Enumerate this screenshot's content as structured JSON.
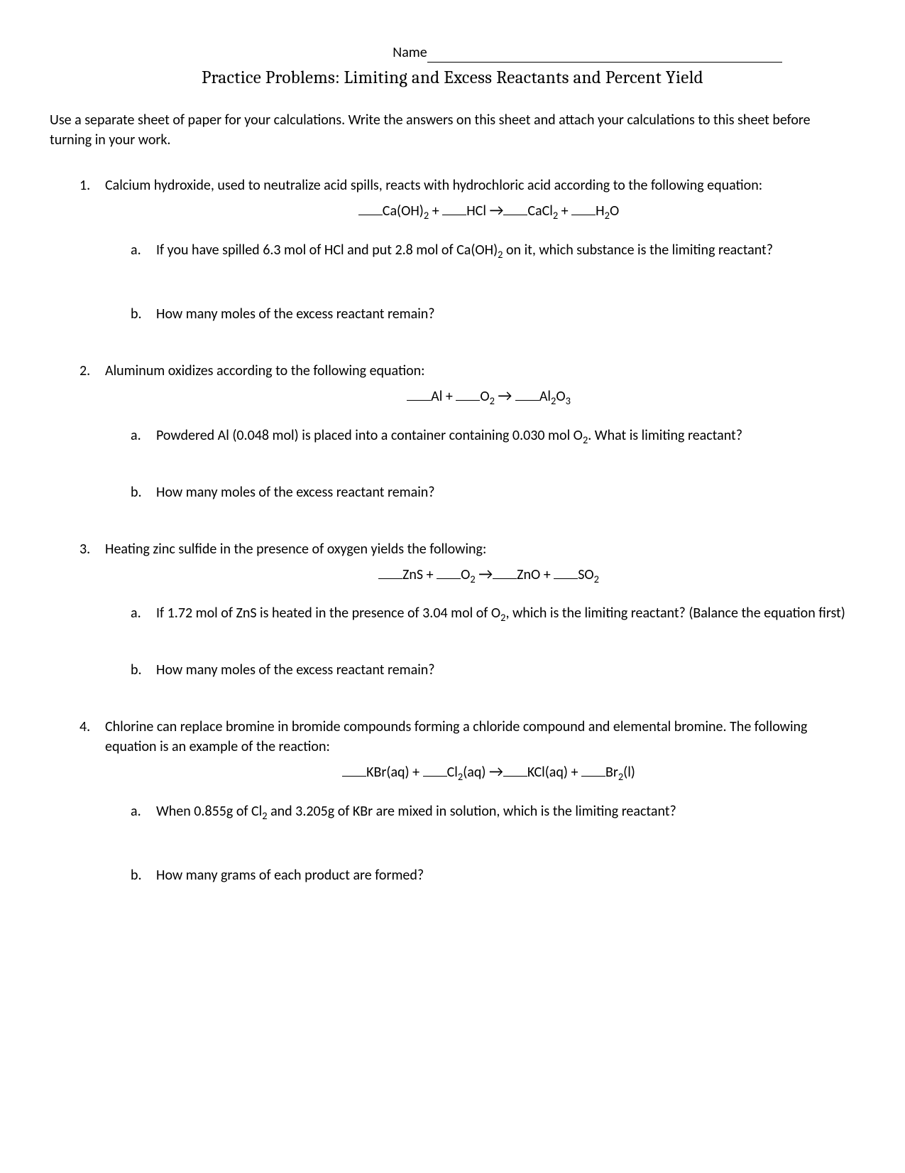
{
  "header": {
    "name_label": "Name",
    "title": "Practice Problems: Limiting and Excess Reactants and Percent Yield"
  },
  "intro": "Use a separate sheet of paper for your calculations. Write the answers on this sheet and attach your calculations to this sheet before turning in your work.",
  "problems": [
    {
      "num": "1.",
      "text": "Calcium hydroxide, used to neutralize acid spills, reacts with hydrochloric acid according to the following equation:",
      "equation_parts": [
        "Ca(OH)",
        "2",
        " + ",
        "HCl ",
        "→",
        "CaCl",
        "2",
        " + ",
        "H",
        "2",
        "O"
      ],
      "subs": [
        {
          "letter": "a.",
          "text_pre": "If you have spilled 6.3 mol of HCl and put 2.8 mol of Ca(OH)",
          "text_sub": "2",
          "text_post": " on it, which substance is the limiting reactant?"
        },
        {
          "letter": "b.",
          "text": "How many moles of the excess reactant remain?"
        }
      ]
    },
    {
      "num": "2.",
      "text": "Aluminum oxidizes according to the following equation:",
      "equation_parts": [
        "Al + ",
        "O",
        "2",
        " ",
        "→",
        " ",
        "Al",
        "2",
        "O",
        "3"
      ],
      "subs": [
        {
          "letter": "a.",
          "text_pre": "Powdered Al (0.048 mol) is placed into a container containing 0.030 mol O",
          "text_sub": "2",
          "text_post": ". What is limiting reactant?"
        },
        {
          "letter": "b.",
          "text": "How many moles of the excess reactant remain?"
        }
      ]
    },
    {
      "num": "3.",
      "text": "Heating zinc sulfide in the presence of oxygen yields the following:",
      "equation_parts": [
        "ZnS + ",
        "O",
        "2",
        " ",
        "→",
        "ZnO + ",
        "SO",
        "2"
      ],
      "subs": [
        {
          "letter": "a.",
          "text_pre": "If 1.72 mol of ZnS is heated in the presence of 3.04 mol of O",
          "text_sub": "2",
          "text_post": ", which is the limiting reactant?  (Balance the equation first)"
        },
        {
          "letter": "b.",
          "text": "How many moles of the excess reactant remain?"
        }
      ]
    },
    {
      "num": "4.",
      "text": "Chlorine can replace bromine in bromide compounds forming a chloride compound and elemental bromine. The following equation is an example of the reaction:",
      "equation_parts": [
        "KBr(aq) + ",
        "Cl",
        "2",
        "(aq) ",
        "→",
        "KCl(aq) + ",
        "Br",
        "2",
        "(l)"
      ],
      "subs": [
        {
          "letter": "a.",
          "text_pre": "When 0.855g of Cl",
          "text_sub": "2",
          "text_post": " and 3.205g of KBr are mixed in solution, which is the limiting reactant?"
        },
        {
          "letter": "b.",
          "text": "How many grams of each product are formed?"
        }
      ]
    }
  ]
}
